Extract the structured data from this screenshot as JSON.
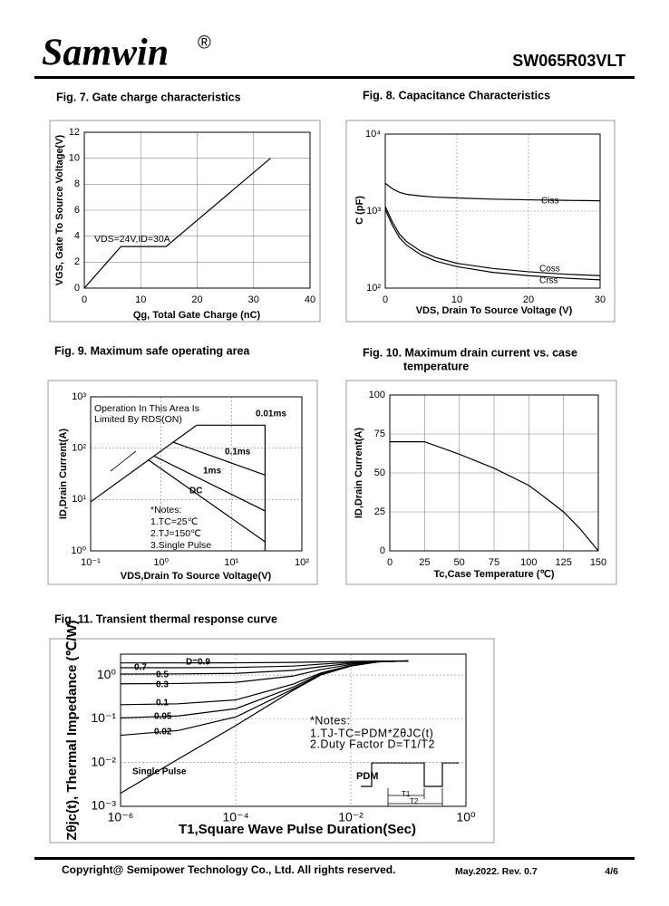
{
  "header": {
    "brand": "Samwin",
    "mark": "®",
    "part": "SW065R03VLT"
  },
  "footer": {
    "copyright": "Copyright@ Semipower Technology Co., Ltd. All rights reserved.",
    "revision": "May.2022. Rev. 0.7",
    "page": "4/6"
  },
  "chart_data": [
    {
      "type": "line",
      "title": "Fig. 7. Gate charge characteristics",
      "x_label": "Qg, Total Gate Charge (nC)",
      "y_label": "VGS, Gate To Source Voltage(V)",
      "annotations": [
        "VDS=24V,ID=30A"
      ],
      "xlim": [
        0,
        40
      ],
      "xticks": [
        0,
        10,
        20,
        30,
        40
      ],
      "ylim": [
        0,
        12
      ],
      "yticks": [
        0,
        2,
        4,
        6,
        8,
        10,
        12
      ],
      "grid": true,
      "series": [
        {
          "color": "#000000",
          "x": [
            0,
            6.5,
            14.5,
            33
          ],
          "values": [
            0,
            3.2,
            3.2,
            10
          ]
        }
      ]
    },
    {
      "type": "line",
      "title": "Fig. 8. Capacitance Characteristics",
      "x_label": "VDS, Drain To Source Voltage (V)",
      "y_label": "C (pF)",
      "xlim": [
        0,
        30
      ],
      "xticks": [
        0,
        10,
        20,
        30
      ],
      "ylim": [
        100,
        10000
      ],
      "y_log": true,
      "yticks": [
        {
          "value": 100,
          "label": "10²"
        },
        {
          "value": 1000,
          "label": "10³"
        },
        {
          "value": 10000,
          "label": "10⁴"
        }
      ],
      "grid": true,
      "x": [
        0,
        1,
        2,
        3,
        5,
        7,
        10,
        15,
        20,
        25,
        30
      ],
      "series": [
        {
          "name": "Ciss",
          "color": "#000000",
          "values": [
            2300,
            1950,
            1750,
            1650,
            1570,
            1520,
            1480,
            1430,
            1400,
            1380,
            1360
          ]
        },
        {
          "name": "Coss",
          "color": "#000000",
          "values": [
            1150,
            720,
            500,
            400,
            300,
            250,
            210,
            180,
            163,
            152,
            145
          ]
        },
        {
          "name": "Crss",
          "color": "#000000",
          "values": [
            1050,
            650,
            450,
            360,
            270,
            225,
            190,
            160,
            145,
            135,
            128
          ]
        }
      ]
    },
    {
      "type": "line",
      "title": "Fig. 9. Maximum safe operating area",
      "x_label": "VDS,Drain To Source Voltage(V)",
      "y_label": "ID,Drain Current(A)",
      "annotations": [
        "Operation In This Area Is",
        "Limited By RDS(ON)",
        "*Notes:",
        "1.TC=25℃",
        "2.TJ=150℃",
        "3.Single Pulse"
      ],
      "xlim": [
        0.1,
        100
      ],
      "x_log": true,
      "xticks": [
        {
          "value": 0.1,
          "label": "10⁻¹"
        },
        {
          "value": 1,
          "label": "10⁰"
        },
        {
          "value": 10,
          "label": "10¹"
        },
        {
          "value": 100,
          "label": "10²"
        }
      ],
      "ylim": [
        1,
        1000
      ],
      "y_log": true,
      "yticks": [
        {
          "value": 1,
          "label": "10⁰"
        },
        {
          "value": 10,
          "label": "10¹"
        },
        {
          "value": 100,
          "label": "10²"
        },
        {
          "value": 1000,
          "label": "10³"
        }
      ],
      "grid": true,
      "series": [
        {
          "color": "#000000",
          "x": [
            0.1,
            3.2
          ],
          "values": [
            9,
            280
          ]
        },
        {
          "name": "0.01ms",
          "color": "#000000",
          "x": [
            3.2,
            30,
            30
          ],
          "values": [
            280,
            280,
            1
          ]
        },
        {
          "name": "0.1ms",
          "color": "#000000",
          "x": [
            1.5,
            30
          ],
          "values": [
            130,
            30
          ]
        },
        {
          "name": "1ms",
          "color": "#000000",
          "x": [
            0.8,
            30
          ],
          "values": [
            70,
            6
          ]
        },
        {
          "name": "DC",
          "color": "#000000",
          "x": [
            0.65,
            30
          ],
          "values": [
            60,
            1.5
          ]
        }
      ]
    },
    {
      "type": "line",
      "title": [
        "Fig. 10. Maximum drain current vs. case",
        "temperature"
      ],
      "x_label": "Tc,Case Temperature (℃)",
      "y_label": "ID,Drain Current(A)",
      "xlim": [
        0,
        150
      ],
      "xticks": [
        0,
        25,
        50,
        75,
        100,
        125,
        150
      ],
      "ylim": [
        0,
        100
      ],
      "yticks": [
        0,
        25,
        50,
        75,
        100
      ],
      "grid": true,
      "series": [
        {
          "color": "#000000",
          "x": [
            0,
            25,
            50,
            75,
            100,
            112,
            125,
            137,
            150
          ],
          "values": [
            70,
            70,
            62,
            53,
            42,
            34,
            25,
            14,
            0
          ]
        }
      ]
    },
    {
      "type": "line",
      "title": "Fig. 11. Transient thermal response curve",
      "x_label": "T1,Square Wave Pulse Duration(Sec)",
      "y_label": "Zθjc(t), Thermal Impedance (℃/W)",
      "annotations": [
        "*Notes:",
        "1.TJ-TC=PDM*ZθJC(t)",
        "2.Duty Factor D=T1/T2",
        "PDM",
        "T1",
        "T2"
      ],
      "xlim": [
        1e-06,
        1
      ],
      "x_log": true,
      "xticks": [
        {
          "value": 1e-06,
          "label": "10⁻⁶"
        },
        {
          "value": 0.0001,
          "label": "10⁻⁴"
        },
        {
          "value": 0.01,
          "label": "10⁻²"
        },
        {
          "value": 1,
          "label": "10⁰"
        }
      ],
      "ylim": [
        0.001,
        3
      ],
      "y_log": true,
      "yticks": [
        {
          "value": 0.001,
          "label": "10⁻³"
        },
        {
          "value": 0.01,
          "label": "10⁻²"
        },
        {
          "value": 0.1,
          "label": "10⁻¹"
        },
        {
          "value": 1,
          "label": "10⁰"
        }
      ],
      "grid": true,
      "x": [
        1e-06,
        1e-05,
        0.0001,
        0.001,
        0.003,
        0.01,
        0.03,
        0.1
      ],
      "series": [
        {
          "name": "D=0.9",
          "color": "#000000",
          "values": [
            1.89,
            1.89,
            1.9,
            1.94,
            1.99,
            2.05,
            2.09,
            2.1
          ]
        },
        {
          "name": "0.7",
          "color": "#000000",
          "values": [
            1.47,
            1.47,
            1.49,
            1.6,
            1.77,
            1.95,
            2.07,
            2.1
          ]
        },
        {
          "name": "0.5",
          "color": "#000000",
          "values": [
            1.05,
            1.06,
            1.09,
            1.28,
            1.55,
            1.85,
            2.05,
            2.1
          ]
        },
        {
          "name": "0.3",
          "color": "#000000",
          "values": [
            0.63,
            0.64,
            0.68,
            0.95,
            1.33,
            1.75,
            2.03,
            2.1
          ]
        },
        {
          "name": "0.1",
          "color": "#000000",
          "values": [
            0.21,
            0.22,
            0.27,
            0.62,
            1.11,
            1.65,
            2.01,
            2.1
          ]
        },
        {
          "name": "0.05",
          "color": "#000000",
          "values": [
            0.105,
            0.116,
            0.17,
            0.53,
            1.06,
            1.63,
            2.0,
            2.1
          ]
        },
        {
          "name": "0.02",
          "color": "#000000",
          "values": [
            0.042,
            0.054,
            0.11,
            0.48,
            1.02,
            1.61,
            2.0,
            2.1
          ]
        },
        {
          "name": "Single Pulse",
          "color": "#000000",
          "values": [
            0.002,
            0.012,
            0.07,
            0.45,
            1.0,
            1.6,
            2.0,
            2.1
          ]
        }
      ]
    }
  ]
}
